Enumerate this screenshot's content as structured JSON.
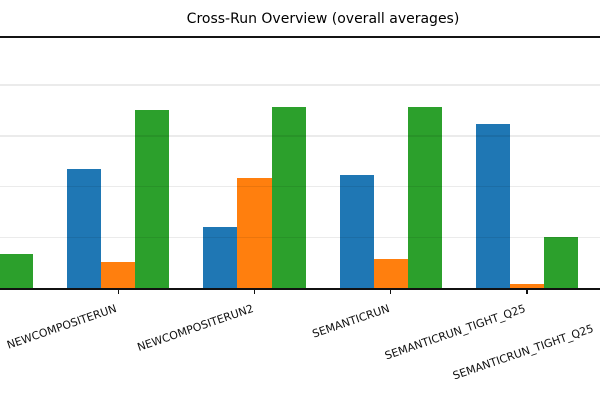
{
  "title": "Cross-Run Overview (overall averages)",
  "chart_data": {
    "type": "bar",
    "title": "Cross-Run Overview (overall averages)",
    "categories": [
      null,
      "NEWCOMPOSITERUN",
      "NEWCOMPOSITERUN2",
      "SEMANTICRUN",
      "SEMANTICRUN_TIGHT_Q25",
      "SEMANTICRUN_TIGHT_Q25"
    ],
    "series": [
      {
        "name": "blue",
        "color": "#1f77b4",
        "values": [
          null,
          0.235,
          0.12,
          0.222,
          0.324,
          null
        ]
      },
      {
        "name": "orange",
        "color": "#ff7f0e",
        "values": [
          null,
          0.052,
          0.217,
          0.058,
          0.009,
          null
        ]
      },
      {
        "name": "green",
        "color": "#2ca02c",
        "values": [
          0.067,
          0.35,
          0.356,
          0.356,
          0.101,
          null
        ]
      }
    ],
    "xlabel": "",
    "ylabel": "",
    "ylim": [
      0,
      0.5
    ],
    "gridline_values": [
      0.1,
      0.2,
      0.3,
      0.4
    ],
    "grid": true,
    "legend": "none",
    "x_tick_rotation_deg": 20,
    "y_tick_labels_visible": false
  }
}
